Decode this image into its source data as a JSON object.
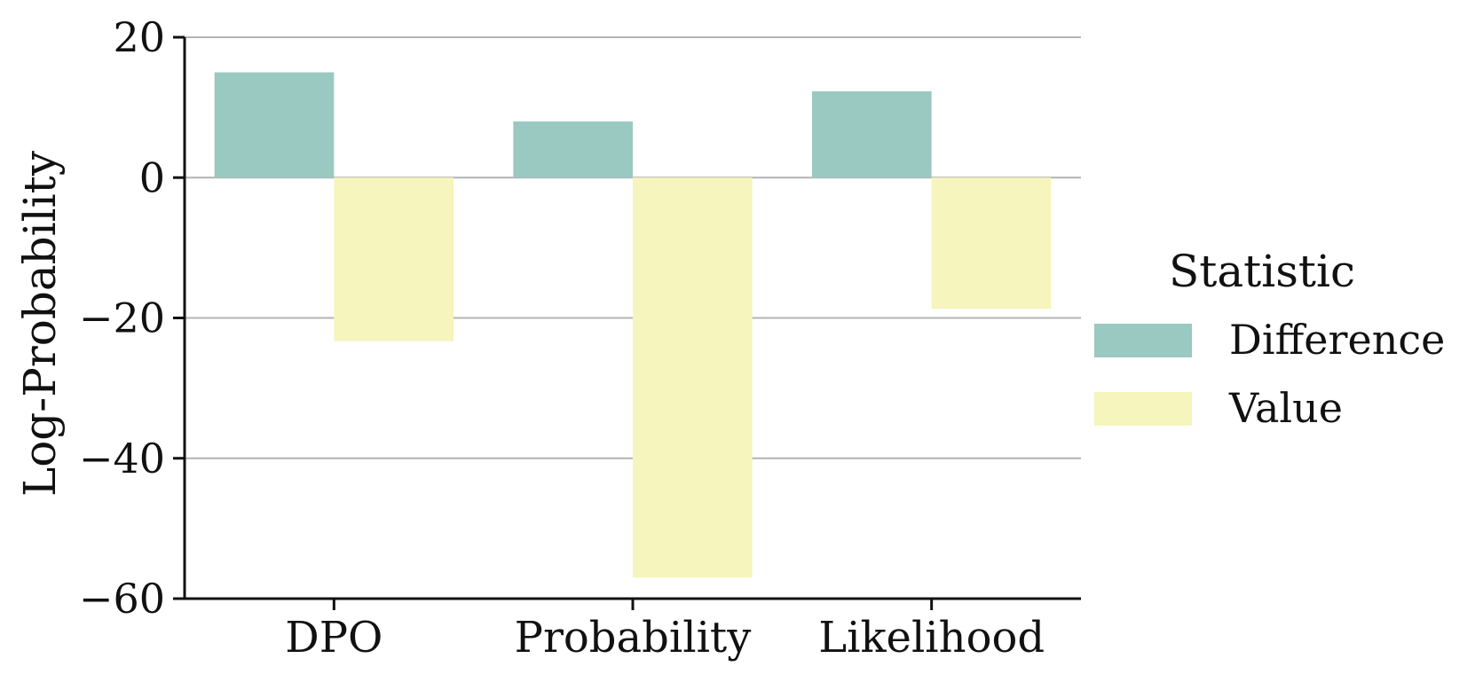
{
  "chart_data": {
    "type": "bar",
    "categories": [
      "DPO",
      "Probability",
      "Likelihood"
    ],
    "series": [
      {
        "name": "Difference",
        "values": [
          15,
          8,
          12.3
        ],
        "color": "#99c9c0"
      },
      {
        "name": "Value",
        "values": [
          -23.3,
          -57,
          -18.7
        ],
        "color": "#f5f5bd"
      }
    ],
    "ylabel": "Log-Probability",
    "xlabel": "",
    "ylim": [
      -60,
      20
    ],
    "yticks": [
      20,
      0,
      -20,
      -40,
      -60
    ],
    "ytick_labels": [
      "20",
      "0",
      "−20",
      "−40",
      "−60"
    ],
    "grid": "horizontal",
    "legend": {
      "title": "Statistic",
      "placement": "right"
    }
  }
}
